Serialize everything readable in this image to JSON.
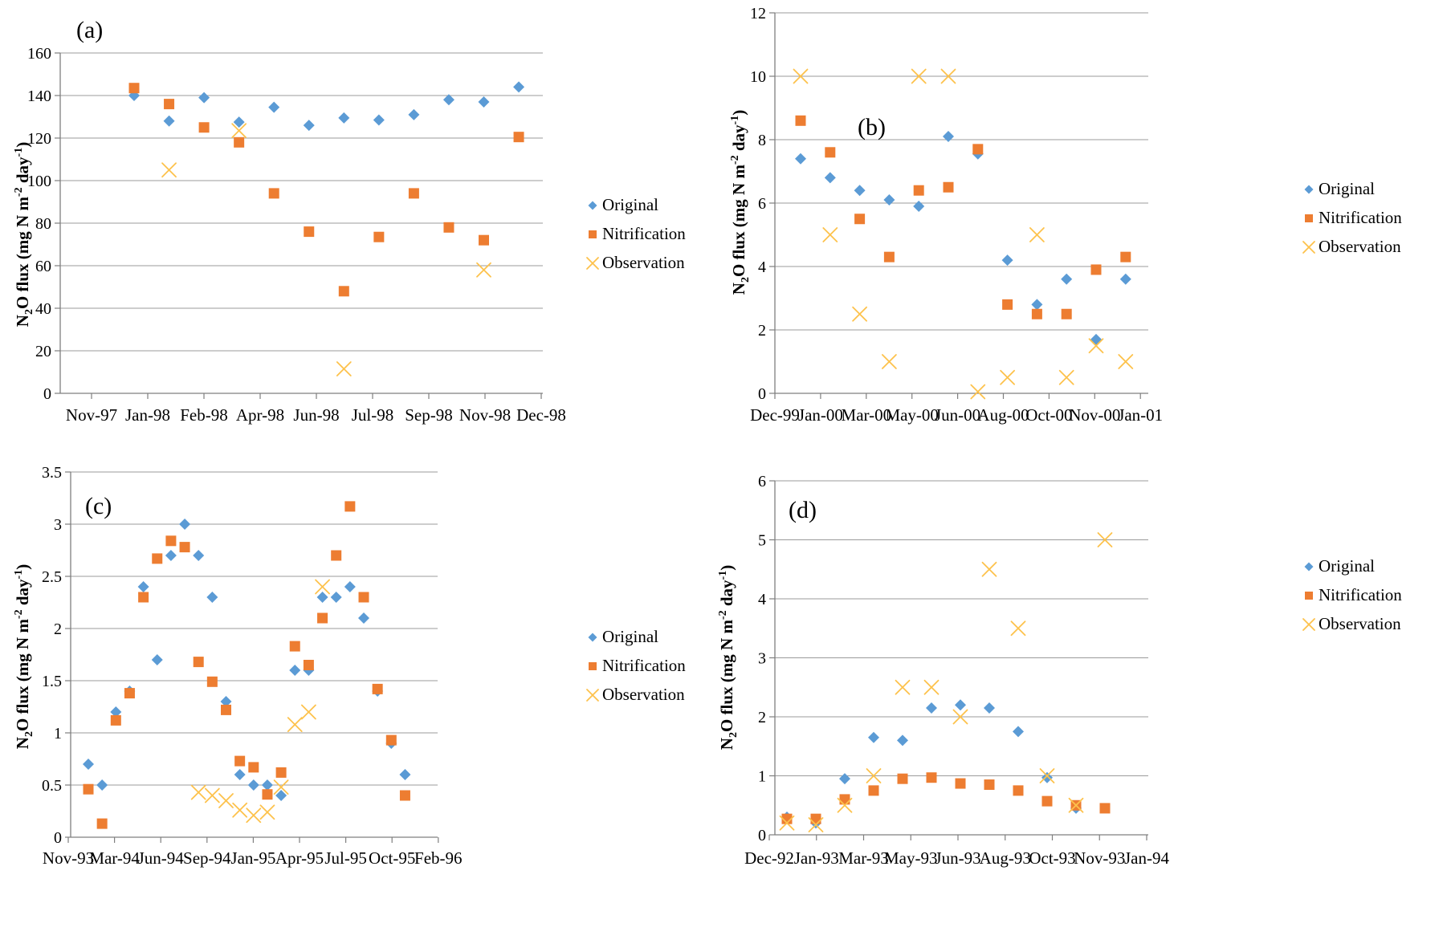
{
  "figure": {
    "background": "#ffffff"
  },
  "colors": {
    "original": "#5B9BD5",
    "nitrification": "#ED7D31",
    "observation": "#FDC24C",
    "grid": "#9B9B9B",
    "axis": "#7F7F7F",
    "text": "#000000"
  },
  "legend": {
    "labels": [
      "Original",
      "Nitrification",
      "Observation"
    ]
  },
  "chart_data": [
    {
      "panel": "a",
      "type": "scatter",
      "letter": "(a)",
      "ylabel_plain": "N2O flux (mg N m-2 day-1)",
      "ylabel_rich": [
        {
          "t": "N"
        },
        {
          "t": "2",
          "s": "sub"
        },
        {
          "t": "O flux (mg N m"
        },
        {
          "t": "-2",
          "s": "sup"
        },
        {
          "t": " day"
        },
        {
          "t": "-1",
          "s": "sup"
        },
        {
          "t": ")"
        }
      ],
      "ylim": [
        0,
        160
      ],
      "ystep": 20,
      "yticklabels": [
        "0",
        "20",
        "40",
        "60",
        "80",
        "100",
        "120",
        "140",
        "160"
      ],
      "xticklabels": [
        "Nov-97",
        "Jan-98",
        "Feb-98",
        "Apr-98",
        "Jun-98",
        "Jul-98",
        "Sep-98",
        "Nov-98",
        "Dec-98"
      ],
      "grid": true,
      "legend_position": "right",
      "series": [
        {
          "name": "Original",
          "marker": "diamond",
          "color": "#5B9BD5",
          "values": [
            140,
            128,
            139,
            127.5,
            134.5,
            126,
            129.5,
            128.5,
            131,
            138,
            137,
            144
          ]
        },
        {
          "name": "Nitrification",
          "marker": "square",
          "color": "#ED7D31",
          "values": [
            143.5,
            136,
            125,
            118,
            94,
            76,
            48,
            73.5,
            94,
            78,
            72,
            120.5
          ]
        },
        {
          "name": "Observation",
          "marker": "x",
          "color": "#FDC24C",
          "values": [
            null,
            105,
            null,
            123.5,
            null,
            null,
            11.5,
            null,
            null,
            null,
            58,
            null
          ]
        }
      ]
    },
    {
      "panel": "b",
      "type": "scatter",
      "letter": "(b)",
      "ylabel_plain": "N2O flux (mg N m-2 day-1)",
      "ylabel_rich": [
        {
          "t": "N"
        },
        {
          "t": "2",
          "s": "sub"
        },
        {
          "t": "O flux (mg N m"
        },
        {
          "t": "-2",
          "s": "sup"
        },
        {
          "t": " day"
        },
        {
          "t": "-1",
          "s": "sup"
        },
        {
          "t": ")"
        }
      ],
      "ylim": [
        0,
        12
      ],
      "ystep": 2,
      "yticklabels": [
        "0",
        "2",
        "4",
        "6",
        "8",
        "10",
        "12"
      ],
      "xticklabels": [
        "Dec-99",
        "Jan-00",
        "Mar-00",
        "May-00",
        "Jun-00",
        "Aug-00",
        "Oct-00",
        "Nov-00",
        "Jan-01"
      ],
      "grid": true,
      "legend_position": "right",
      "series": [
        {
          "name": "Original",
          "marker": "diamond",
          "color": "#5B9BD5",
          "values": [
            7.4,
            6.8,
            6.4,
            6.1,
            5.9,
            8.1,
            7.55,
            4.2,
            2.8,
            3.6,
            1.7,
            3.6
          ]
        },
        {
          "name": "Nitrification",
          "marker": "square",
          "color": "#ED7D31",
          "values": [
            8.6,
            7.6,
            5.5,
            4.3,
            6.4,
            6.5,
            7.7,
            2.8,
            2.5,
            2.5,
            3.9,
            4.3
          ]
        },
        {
          "name": "Observation",
          "marker": "x",
          "color": "#FDC24C",
          "values": [
            10,
            5,
            2.5,
            1,
            10,
            10,
            0.05,
            0.5,
            5,
            0.5,
            1.5,
            1
          ]
        }
      ]
    },
    {
      "panel": "c",
      "type": "scatter",
      "letter": "(c)",
      "ylabel_plain": "N2O flux (mg N m-2 day-1)",
      "ylabel_rich": [
        {
          "t": "N"
        },
        {
          "t": "2",
          "s": "sub"
        },
        {
          "t": "O flux (mg N m"
        },
        {
          "t": "-2",
          "s": "sup"
        },
        {
          "t": " day"
        },
        {
          "t": "-1",
          "s": "sup"
        },
        {
          "t": ")"
        }
      ],
      "ylim": [
        0,
        3.5
      ],
      "ystep": 0.5,
      "yticklabels": [
        "0",
        "0.5",
        "1",
        "1.5",
        "2",
        "2.5",
        "3",
        "3.5"
      ],
      "xticklabels": [
        "Nov-93",
        "Mar-94",
        "Jun-94",
        "Sep-94",
        "Jan-95",
        "Apr-95",
        "Jul-95",
        "Oct-95",
        "Feb-96"
      ],
      "grid": true,
      "legend_position": "right",
      "series": [
        {
          "name": "Original",
          "marker": "diamond",
          "color": "#5B9BD5",
          "values": [
            0.7,
            0.5,
            1.2,
            1.4,
            2.4,
            1.7,
            2.7,
            3.0,
            2.7,
            2.3,
            1.3,
            0.6,
            0.5,
            0.5,
            0.4,
            1.6,
            1.6,
            2.3,
            2.3,
            2.4,
            2.1,
            1.4,
            0.9,
            0.6
          ]
        },
        {
          "name": "Nitrification",
          "marker": "square",
          "color": "#ED7D31",
          "values": [
            0.46,
            0.13,
            1.12,
            1.38,
            2.3,
            2.67,
            2.84,
            2.78,
            1.68,
            1.49,
            1.22,
            0.73,
            0.67,
            0.41,
            0.62,
            1.83,
            1.65,
            2.1,
            2.7,
            3.17,
            2.3,
            1.42,
            0.93,
            0.4
          ]
        },
        {
          "name": "Observation",
          "marker": "x",
          "color": "#FDC24C",
          "values": [
            null,
            null,
            null,
            null,
            null,
            null,
            null,
            null,
            0.43,
            0.4,
            0.35,
            0.26,
            0.21,
            0.24,
            0.48,
            1.08,
            1.2,
            2.4,
            null,
            null,
            null,
            null,
            null,
            null
          ]
        }
      ]
    },
    {
      "panel": "d",
      "type": "scatter",
      "letter": "(d)",
      "ylabel_plain": "N2O flux (mg N m-2 day-1)",
      "ylabel_rich": [
        {
          "t": "N"
        },
        {
          "t": "2",
          "s": "sub"
        },
        {
          "t": "O flux (mg N m"
        },
        {
          "t": "-2",
          "s": "sup"
        },
        {
          "t": " day"
        },
        {
          "t": "-1",
          "s": "sup"
        },
        {
          "t": ")"
        }
      ],
      "ylim": [
        0,
        6
      ],
      "ystep": 1,
      "yticklabels": [
        "0",
        "1",
        "2",
        "3",
        "4",
        "5",
        "6"
      ],
      "xticklabels": [
        "Dec-92",
        "Jan-93",
        "Mar-93",
        "May-93",
        "Jun-93",
        "Aug-93",
        "Oct-93",
        "Nov-93",
        "Jan-94"
      ],
      "grid": true,
      "legend_position": "right",
      "series": [
        {
          "name": "Original",
          "marker": "diamond",
          "color": "#5B9BD5",
          "values": [
            0.3,
            0.2,
            0.95,
            1.65,
            1.6,
            2.15,
            2.2,
            2.15,
            1.75,
            0.97,
            0.45,
            null
          ]
        },
        {
          "name": "Nitrification",
          "marker": "square",
          "color": "#ED7D31",
          "values": [
            0.27,
            0.27,
            0.6,
            0.75,
            0.95,
            0.97,
            0.87,
            0.85,
            0.75,
            0.57,
            0.5,
            0.45
          ]
        },
        {
          "name": "Observation",
          "marker": "x",
          "color": "#FDC24C",
          "values": [
            0.2,
            0.17,
            0.5,
            1.0,
            2.5,
            2.5,
            2.0,
            4.5,
            3.5,
            1.0,
            0.5,
            5.0
          ]
        }
      ]
    }
  ]
}
